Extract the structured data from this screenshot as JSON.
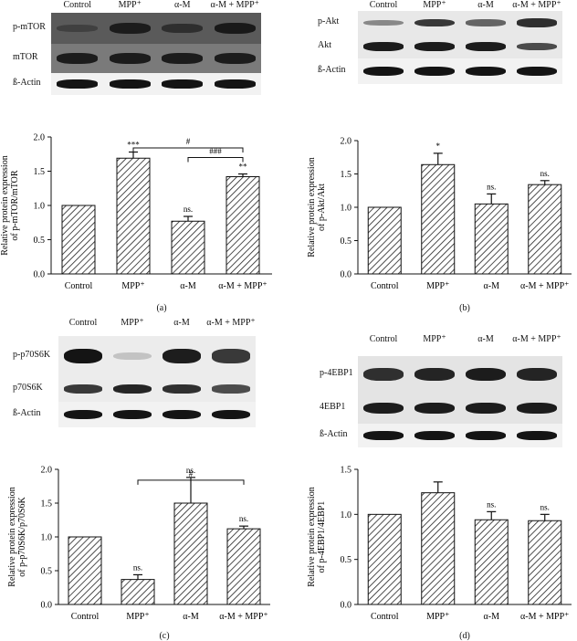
{
  "panels": [
    {
      "letter": "(a)",
      "lanes": [
        "Control",
        "MPP⁺",
        "α-M",
        "α-M + MPP⁺"
      ],
      "rows": [
        {
          "label": "p-mTOR",
          "intensity": [
            0.25,
            0.85,
            0.55,
            0.9
          ]
        },
        {
          "label": "mTOR",
          "intensity": [
            0.9,
            0.9,
            0.9,
            0.9
          ]
        },
        {
          "label": "ß-Actin",
          "intensity": [
            1.0,
            1.0,
            1.0,
            1.0
          ]
        }
      ],
      "colors": {
        "blot_bg": "#5a5a5a",
        "blot_bg2": "#7a7a7a"
      }
    },
    {
      "letter": "(b)",
      "lanes": [
        "Control",
        "MPP⁺",
        "α-M",
        "α-M + MPP⁺"
      ],
      "rows": [
        {
          "label": "p-Akt",
          "intensity": [
            0.35,
            0.8,
            0.55,
            0.85
          ]
        },
        {
          "label": "Akt",
          "intensity": [
            0.95,
            0.95,
            0.95,
            0.7
          ]
        },
        {
          "label": "ß-Actin",
          "intensity": [
            1.0,
            1.0,
            1.0,
            1.0
          ]
        }
      ],
      "colors": {
        "blot_bg": "#e8e8e8",
        "blot_bg2": "#e8e8e8"
      }
    },
    {
      "letter": "(c)",
      "lanes": [
        "Control",
        "MPP⁺",
        "α-M",
        "α-M + MPP⁺"
      ],
      "rows": [
        {
          "label": "p-p70S6K",
          "intensity": [
            1.0,
            0.05,
            0.95,
            0.8
          ]
        },
        {
          "label": "p70S6K",
          "intensity": [
            0.8,
            0.9,
            0.85,
            0.7
          ]
        },
        {
          "label": "ß-Actin",
          "intensity": [
            1.0,
            1.0,
            1.0,
            1.0
          ]
        }
      ],
      "colors": {
        "blot_bg": "#ececec",
        "blot_bg2": "#ececec"
      }
    },
    {
      "letter": "(d)",
      "lanes": [
        "Control",
        "MPP⁺",
        "α-M",
        "α-M + MPP⁺"
      ],
      "rows": [
        {
          "label": "p-4EBP1",
          "intensity": [
            0.85,
            0.9,
            0.95,
            0.9
          ]
        },
        {
          "label": "4EBP1",
          "intensity": [
            0.95,
            0.95,
            0.95,
            0.95
          ]
        },
        {
          "label": "ß-Actin",
          "intensity": [
            1.0,
            1.0,
            1.0,
            1.0
          ]
        }
      ],
      "colors": {
        "blot_bg": "#e4e4e4",
        "blot_bg2": "#e4e4e4"
      }
    }
  ],
  "chart_data": [
    {
      "type": "bar",
      "categories": [
        "Control",
        "MPP⁺",
        "α-M",
        "α-M + MPP⁺"
      ],
      "values": [
        1.0,
        1.69,
        0.77,
        1.42
      ],
      "errors": [
        0.0,
        0.09,
        0.07,
        0.04
      ],
      "ylabel": [
        "Relative protein expression",
        "of p-mTOR/mTOR"
      ],
      "ylim": [
        0,
        2.0
      ],
      "yticks": [
        "0.0",
        "0.5",
        "1.0",
        "1.5",
        "2.0"
      ],
      "annotations": [
        "",
        "***",
        "ns.",
        "**"
      ],
      "brackets": [
        {
          "from": 1,
          "to": 3,
          "label": "#"
        },
        {
          "from": 2,
          "to": 3,
          "label": "###"
        }
      ]
    },
    {
      "type": "bar",
      "categories": [
        "Control",
        "MPP⁺",
        "α-M",
        "α-M + MPP⁺"
      ],
      "values": [
        1.0,
        1.64,
        1.05,
        1.34
      ],
      "errors": [
        0.0,
        0.17,
        0.15,
        0.06
      ],
      "ylabel": [
        "Relative protein expression",
        "of p-Akt/Akt"
      ],
      "ylim": [
        0,
        2.0
      ],
      "yticks": [
        "0.0",
        "0.5",
        "1.0",
        "1.5",
        "2.0"
      ],
      "annotations": [
        "",
        "*",
        "ns.",
        "ns."
      ],
      "brackets": []
    },
    {
      "type": "bar",
      "categories": [
        "Control",
        "MPP⁺",
        "α-M",
        "α-M + MPP⁺"
      ],
      "values": [
        1.0,
        0.37,
        1.5,
        1.12
      ],
      "errors": [
        0.0,
        0.07,
        0.38,
        0.04
      ],
      "ylabel": [
        "Relative protein expression",
        "of p-p70S6K/p70S6K"
      ],
      "ylim": [
        0,
        2.0
      ],
      "yticks": [
        "0.0",
        "0.5",
        "1.0",
        "1.5",
        "2.0"
      ],
      "annotations": [
        "",
        "ns.",
        "ns.",
        "ns."
      ],
      "brackets": [
        {
          "from": 1,
          "to": 3,
          "label": "#"
        }
      ]
    },
    {
      "type": "bar",
      "categories": [
        "Control",
        "MPP⁺",
        "α-M",
        "α-M + MPP⁺"
      ],
      "values": [
        1.0,
        1.24,
        0.94,
        0.93
      ],
      "errors": [
        0.0,
        0.12,
        0.09,
        0.07
      ],
      "ylabel": [
        "Relative protein expression",
        "of p-4EBP1/4EBP1"
      ],
      "ylim": [
        0,
        1.5
      ],
      "yticks": [
        "0.0",
        "0.5",
        "1.0",
        "1.5"
      ],
      "annotations": [
        "",
        "",
        "ns.",
        "ns."
      ],
      "brackets": []
    }
  ]
}
